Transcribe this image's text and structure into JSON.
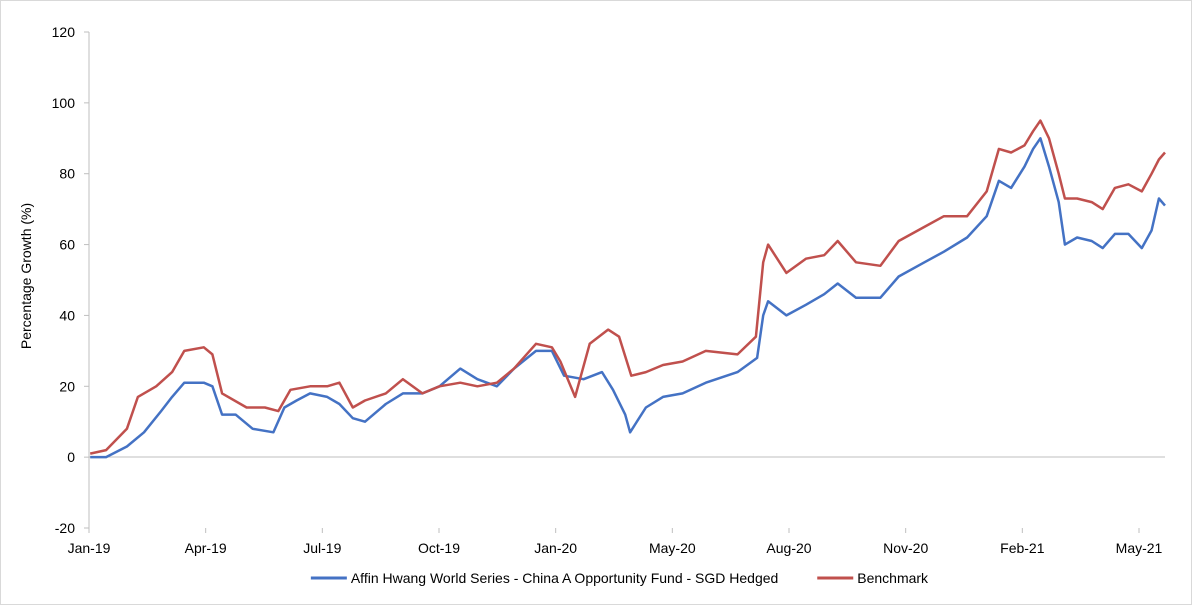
{
  "chart_data": {
    "type": "line",
    "title": "",
    "xlabel": "",
    "ylabel": "Percentage Growth (%)",
    "ylim": [
      -20,
      120
    ],
    "yticks": [
      "-20",
      "0",
      "20",
      "40",
      "60",
      "80",
      "100",
      "120"
    ],
    "xticks": [
      "Jan-19",
      "Apr-19",
      "Jul-19",
      "Oct-19",
      "Jan-20",
      "May-20",
      "Aug-20",
      "Nov-20",
      "Feb-21",
      "May-21"
    ],
    "x_range": [
      "2019-01-01",
      "2021-05-31"
    ],
    "grid": false,
    "legend_position": "bottom",
    "series": [
      {
        "name": "Affin Hwang World Series - China A Opportunity Fund - SGD Hedged",
        "color": "#4472c4",
        "points": [
          [
            "2019-01-02",
            0
          ],
          [
            "2019-01-15",
            0
          ],
          [
            "2019-02-01",
            3
          ],
          [
            "2019-02-15",
            7
          ],
          [
            "2019-03-01",
            13
          ],
          [
            "2019-03-10",
            17
          ],
          [
            "2019-03-20",
            21
          ],
          [
            "2019-04-05",
            21
          ],
          [
            "2019-04-12",
            20
          ],
          [
            "2019-04-20",
            12
          ],
          [
            "2019-05-01",
            12
          ],
          [
            "2019-05-15",
            8
          ],
          [
            "2019-06-01",
            7
          ],
          [
            "2019-06-10",
            14
          ],
          [
            "2019-06-20",
            16
          ],
          [
            "2019-07-01",
            18
          ],
          [
            "2019-07-15",
            17
          ],
          [
            "2019-07-25",
            15
          ],
          [
            "2019-08-05",
            11
          ],
          [
            "2019-08-15",
            10
          ],
          [
            "2019-09-01",
            15
          ],
          [
            "2019-09-15",
            18
          ],
          [
            "2019-10-01",
            18
          ],
          [
            "2019-10-15",
            20
          ],
          [
            "2019-11-01",
            25
          ],
          [
            "2019-11-15",
            22
          ],
          [
            "2019-12-01",
            20
          ],
          [
            "2019-12-15",
            25
          ],
          [
            "2020-01-02",
            30
          ],
          [
            "2020-01-15",
            30
          ],
          [
            "2020-01-25",
            23
          ],
          [
            "2020-02-10",
            22
          ],
          [
            "2020-02-25",
            24
          ],
          [
            "2020-03-05",
            19
          ],
          [
            "2020-03-15",
            12
          ],
          [
            "2020-03-19",
            7
          ],
          [
            "2020-04-01",
            14
          ],
          [
            "2020-04-15",
            17
          ],
          [
            "2020-05-01",
            18
          ],
          [
            "2020-05-20",
            21
          ],
          [
            "2020-06-15",
            24
          ],
          [
            "2020-07-01",
            28
          ],
          [
            "2020-07-06",
            40
          ],
          [
            "2020-07-10",
            44
          ],
          [
            "2020-07-25",
            40
          ],
          [
            "2020-08-10",
            43
          ],
          [
            "2020-08-25",
            46
          ],
          [
            "2020-09-05",
            49
          ],
          [
            "2020-09-20",
            45
          ],
          [
            "2020-10-10",
            45
          ],
          [
            "2020-10-25",
            51
          ],
          [
            "2020-11-15",
            55
          ],
          [
            "2020-12-01",
            58
          ],
          [
            "2020-12-20",
            62
          ],
          [
            "2021-01-05",
            68
          ],
          [
            "2021-01-15",
            78
          ],
          [
            "2021-01-25",
            76
          ],
          [
            "2021-02-05",
            82
          ],
          [
            "2021-02-12",
            87
          ],
          [
            "2021-02-18",
            90
          ],
          [
            "2021-02-25",
            82
          ],
          [
            "2021-03-05",
            72
          ],
          [
            "2021-03-10",
            60
          ],
          [
            "2021-03-20",
            62
          ],
          [
            "2021-04-01",
            61
          ],
          [
            "2021-04-10",
            59
          ],
          [
            "2021-04-20",
            63
          ],
          [
            "2021-05-01",
            63
          ],
          [
            "2021-05-12",
            59
          ],
          [
            "2021-05-20",
            64
          ],
          [
            "2021-05-26",
            73
          ],
          [
            "2021-05-31",
            71
          ]
        ]
      },
      {
        "name": "Benchmark",
        "color": "#c0504d",
        "points": [
          [
            "2019-01-02",
            1
          ],
          [
            "2019-01-15",
            2
          ],
          [
            "2019-02-01",
            8
          ],
          [
            "2019-02-10",
            17
          ],
          [
            "2019-02-25",
            20
          ],
          [
            "2019-03-10",
            24
          ],
          [
            "2019-03-20",
            30
          ],
          [
            "2019-04-05",
            31
          ],
          [
            "2019-04-12",
            29
          ],
          [
            "2019-04-20",
            18
          ],
          [
            "2019-05-10",
            14
          ],
          [
            "2019-05-25",
            14
          ],
          [
            "2019-06-05",
            13
          ],
          [
            "2019-06-15",
            19
          ],
          [
            "2019-07-01",
            20
          ],
          [
            "2019-07-15",
            20
          ],
          [
            "2019-07-25",
            21
          ],
          [
            "2019-08-05",
            14
          ],
          [
            "2019-08-15",
            16
          ],
          [
            "2019-09-01",
            18
          ],
          [
            "2019-09-15",
            22
          ],
          [
            "2019-10-01",
            18
          ],
          [
            "2019-10-15",
            20
          ],
          [
            "2019-11-01",
            21
          ],
          [
            "2019-11-15",
            20
          ],
          [
            "2019-12-01",
            21
          ],
          [
            "2019-12-15",
            25
          ],
          [
            "2020-01-02",
            32
          ],
          [
            "2020-01-15",
            31
          ],
          [
            "2020-01-22",
            27
          ],
          [
            "2020-02-03",
            17
          ],
          [
            "2020-02-15",
            32
          ],
          [
            "2020-03-01",
            36
          ],
          [
            "2020-03-10",
            34
          ],
          [
            "2020-03-20",
            23
          ],
          [
            "2020-04-01",
            24
          ],
          [
            "2020-04-15",
            26
          ],
          [
            "2020-05-01",
            27
          ],
          [
            "2020-05-20",
            30
          ],
          [
            "2020-06-15",
            29
          ],
          [
            "2020-06-30",
            34
          ],
          [
            "2020-07-06",
            55
          ],
          [
            "2020-07-10",
            60
          ],
          [
            "2020-07-25",
            52
          ],
          [
            "2020-08-10",
            56
          ],
          [
            "2020-08-25",
            57
          ],
          [
            "2020-09-05",
            61
          ],
          [
            "2020-09-20",
            55
          ],
          [
            "2020-10-10",
            54
          ],
          [
            "2020-10-25",
            61
          ],
          [
            "2020-11-15",
            65
          ],
          [
            "2020-12-01",
            68
          ],
          [
            "2020-12-20",
            68
          ],
          [
            "2021-01-05",
            75
          ],
          [
            "2021-01-15",
            87
          ],
          [
            "2021-01-25",
            86
          ],
          [
            "2021-02-05",
            88
          ],
          [
            "2021-02-12",
            92
          ],
          [
            "2021-02-18",
            95
          ],
          [
            "2021-02-25",
            90
          ],
          [
            "2021-03-05",
            80
          ],
          [
            "2021-03-10",
            73
          ],
          [
            "2021-03-20",
            73
          ],
          [
            "2021-04-01",
            72
          ],
          [
            "2021-04-10",
            70
          ],
          [
            "2021-04-20",
            76
          ],
          [
            "2021-05-01",
            77
          ],
          [
            "2021-05-12",
            75
          ],
          [
            "2021-05-20",
            80
          ],
          [
            "2021-05-26",
            84
          ],
          [
            "2021-05-31",
            86
          ]
        ]
      }
    ]
  }
}
